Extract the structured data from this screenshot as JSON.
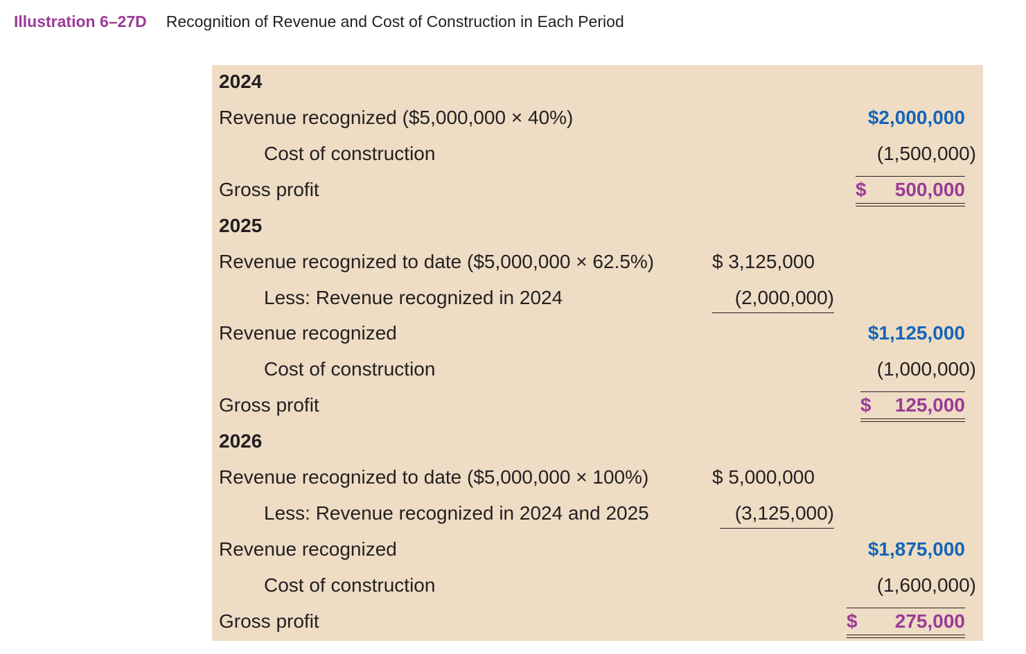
{
  "header": {
    "illustration_label": "Illustration 6–27D",
    "title": "Recognition of Revenue and Cost of Construction in Each Period"
  },
  "y2024": {
    "year": "2024",
    "rev_label": "Revenue recognized ($5,000,000 × 40%)",
    "rev_value": "$2,000,000",
    "cost_label": "Cost of construction",
    "cost_value": "(1,500,000)",
    "gp_label": "Gross profit",
    "gp_currency": "$",
    "gp_value": "500,000"
  },
  "y2025": {
    "year": "2025",
    "todate_label": "Revenue recognized to date ($5,000,000 × 62.5%)",
    "todate_value": "$ 3,125,000",
    "less_label": "Less: Revenue recognized in 2024",
    "less_value": "(2,000,000)",
    "rev_label": "Revenue recognized",
    "rev_value": "$1,125,000",
    "cost_label": "Cost of construction",
    "cost_value": "(1,000,000)",
    "gp_label": "Gross profit",
    "gp_currency": "$",
    "gp_value": "125,000"
  },
  "y2026": {
    "year": "2026",
    "todate_label": "Revenue recognized to date ($5,000,000 × 100%)",
    "todate_value": "$ 5,000,000",
    "less_label": "Less: Revenue recognized in 2024 and 2025",
    "less_value": "(3,125,000)",
    "rev_label": "Revenue recognized",
    "rev_value": "$1,875,000",
    "cost_label": "Cost of construction",
    "cost_value": "(1,600,000)",
    "gp_label": "Gross profit",
    "gp_currency": "$",
    "gp_value": "275,000"
  },
  "colors": {
    "accent_purple": "#9b3b97",
    "accent_blue": "#1565b6",
    "panel_background": "#eedcc5"
  }
}
